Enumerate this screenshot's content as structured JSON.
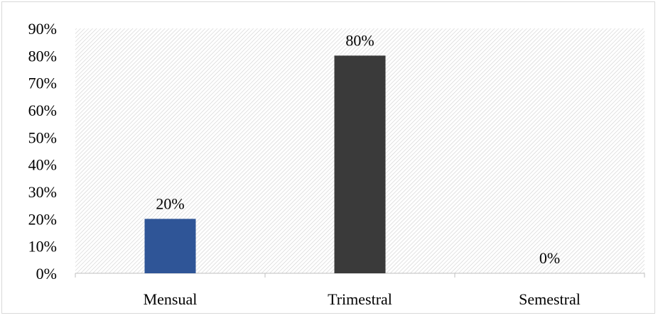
{
  "chart_data": {
    "type": "bar",
    "title": "",
    "xlabel": "",
    "ylabel": "",
    "categories": [
      "Mensual",
      "Trimestral",
      "Semestral"
    ],
    "values": [
      20,
      80,
      0
    ],
    "value_labels": [
      "20%",
      "80%",
      "0%"
    ],
    "ylim": [
      0,
      90
    ],
    "yticks": [
      0,
      10,
      20,
      30,
      40,
      50,
      60,
      70,
      80,
      90
    ],
    "ytick_labels": [
      "0%",
      "10%",
      "20%",
      "30%",
      "40%",
      "50%",
      "60%",
      "70%",
      "80%",
      "90%"
    ],
    "bar_colors": [
      "#2f5597",
      "#3a3a3a",
      "#3a3a3a"
    ],
    "grid": false,
    "legend": "none",
    "plot_background": "diagonal-hatch"
  }
}
